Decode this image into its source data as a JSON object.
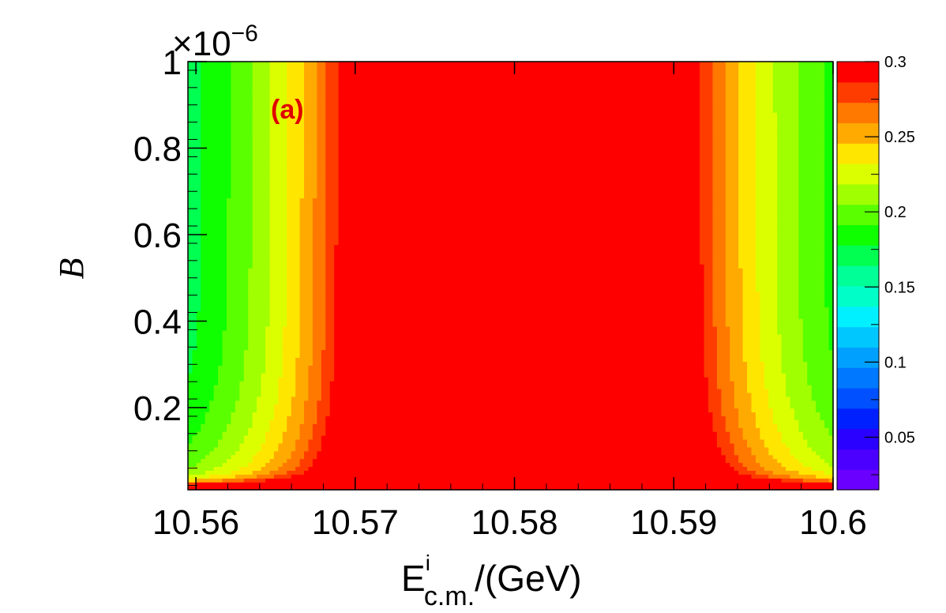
{
  "chart_data": {
    "type": "heatmap",
    "xlabel": "E",
    "xlabel_superscript": "i",
    "xlabel_subscript": "c.m.",
    "xlabel_suffix": "/(GeV)",
    "ylabel": "B",
    "y_multiplier_base": "×10",
    "y_multiplier_exp": "−6",
    "annotation": "(a)",
    "xlim": [
      10.5595,
      10.6
    ],
    "ylim": [
      0.01,
      1.0
    ],
    "x_ticks": [
      "10.56",
      "10.57",
      "10.58",
      "10.59",
      "10.6"
    ],
    "x_tick_values": [
      10.56,
      10.57,
      10.58,
      10.59,
      10.6
    ],
    "y_ticks": [
      "0.2",
      "0.4",
      "0.6",
      "0.8",
      "1"
    ],
    "y_tick_values": [
      0.2,
      0.4,
      0.6,
      0.8,
      1.0
    ],
    "z_ticks": [
      "0.05",
      "0.1",
      "0.15",
      "0.2",
      "0.25",
      "0.3"
    ],
    "z_tick_values": [
      0.05,
      0.1,
      0.15,
      0.2,
      0.25,
      0.3
    ],
    "zlim": [
      0.015,
      0.3
    ],
    "resonance_center": 10.58,
    "colors": [
      "#6a00ff",
      "#4b00ff",
      "#2a00ff",
      "#0020ff",
      "#0050ff",
      "#0078ff",
      "#00a0ff",
      "#00c8ff",
      "#00f0ff",
      "#00ffc8",
      "#00ff96",
      "#00ff50",
      "#10ff00",
      "#5aff00",
      "#a0ff00",
      "#dcff00",
      "#ffe600",
      "#ffaa00",
      "#ff7800",
      "#ff3c00",
      "#ff0000"
    ]
  }
}
